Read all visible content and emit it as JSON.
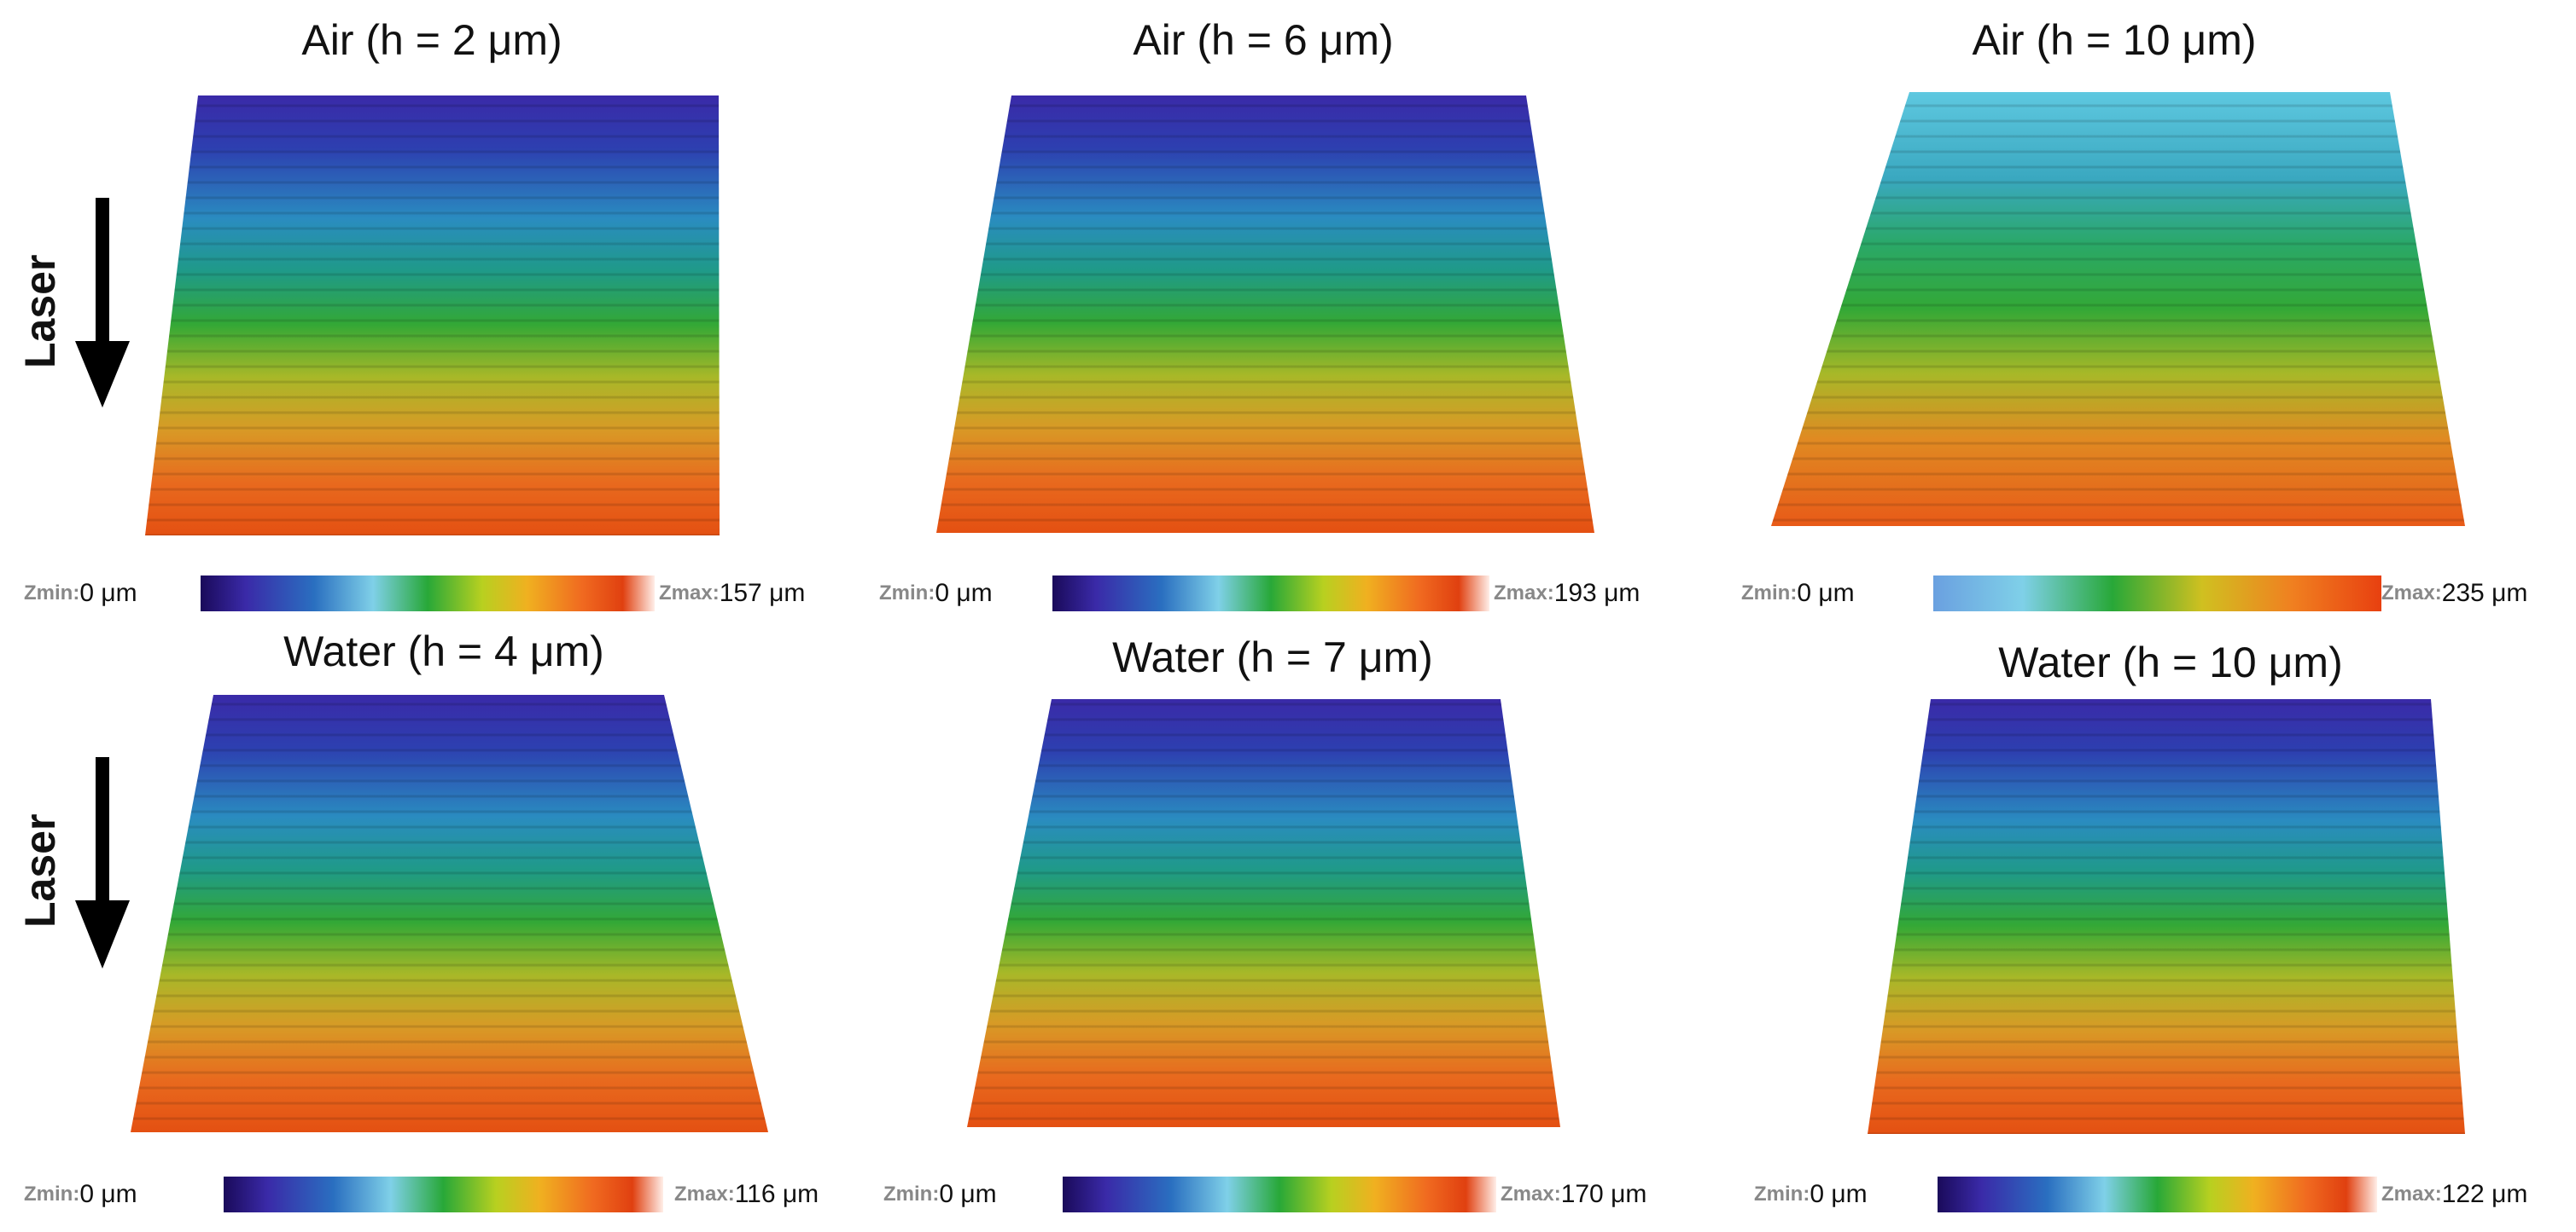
{
  "laser_label": "Laser",
  "zmin_label": "Zmin:",
  "zmax_label": "Zmax:",
  "colors": {
    "gradient": [
      "#1a0a5a",
      "#3a2aa8",
      "#2a6fc0",
      "#5ec8e0",
      "#28a838",
      "#a8c820",
      "#e0b020",
      "#f07020",
      "#e04010",
      "#ffe8e0"
    ]
  },
  "panels": [
    {
      "title": "Air (h = 2 μm)",
      "zmin": "0 μm",
      "zmax": "157 μm"
    },
    {
      "title": "Air (h = 6 μm)",
      "zmin": "0 μm",
      "zmax": "193 μm"
    },
    {
      "title": "Air (h = 10 μm)",
      "zmin": "0 μm",
      "zmax": "235 μm"
    },
    {
      "title": "Water (h = 4 μm)",
      "zmin": "0 μm",
      "zmax": "116 μm"
    },
    {
      "title": "Water (h = 7 μm)",
      "zmin": "0 μm",
      "zmax": "170 μm"
    },
    {
      "title": "Water (h = 10 μm)",
      "zmin": "0 μm",
      "zmax": "122 μm"
    }
  ]
}
